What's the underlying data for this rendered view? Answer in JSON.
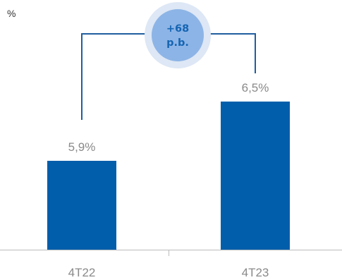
{
  "chart_data": {
    "type": "bar",
    "unit_label": "%",
    "categories": [
      "4T22",
      "4T23"
    ],
    "values": [
      5.9,
      6.5
    ],
    "value_labels": [
      "5,9%",
      "6,5%"
    ],
    "ylim": [
      5.0,
      6.75
    ],
    "grid": false,
    "legend": "none",
    "annotation": {
      "line1": "+68",
      "line2": "p.b."
    },
    "colors": {
      "bar": "#005eab",
      "connector": "#1f5e9e",
      "badge_outer": "#dde7f5",
      "badge_inner": "#8db4e6",
      "badge_text": "#1565b3",
      "axis": "#bbbbbb"
    }
  }
}
